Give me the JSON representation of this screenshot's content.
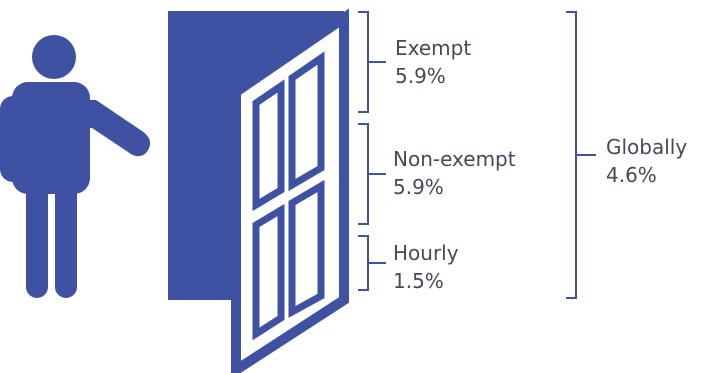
{
  "colors": {
    "figure": "#3f51a3",
    "bracket": "#3f51a3",
    "text": "#444a5a"
  },
  "icons": {
    "person": "person-icon",
    "door": "open-door-icon"
  },
  "categories": [
    {
      "label": "Exempt",
      "value": "5.9%"
    },
    {
      "label": "Non-exempt",
      "value": "5.9%"
    },
    {
      "label": "Hourly",
      "value": "1.5%"
    }
  ],
  "overall": {
    "label": "Globally",
    "value": "4.6%"
  }
}
